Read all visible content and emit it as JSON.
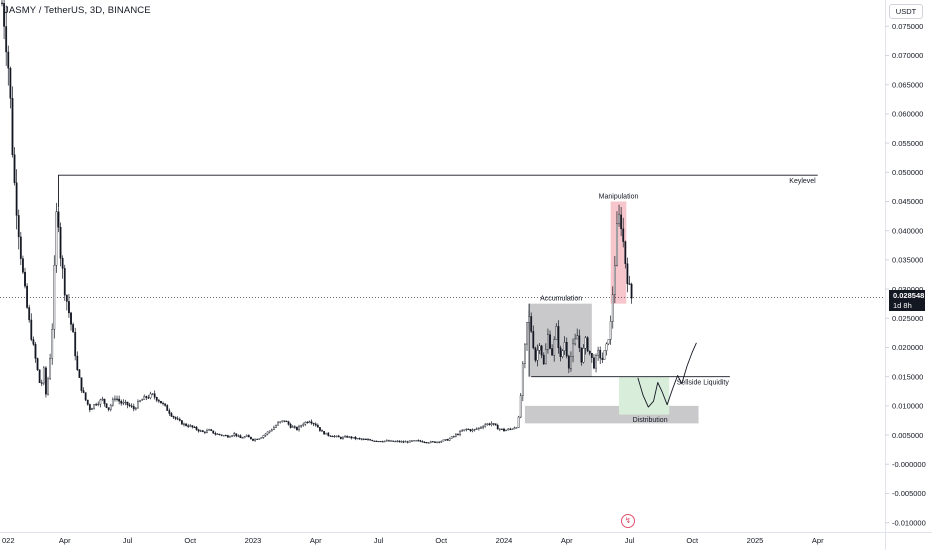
{
  "header": {
    "symbol": "JASMY / TetherUS, 3D, BINANCE"
  },
  "currency": "USDT",
  "current_price": {
    "value": "0.028548",
    "countdown": "1d 8h"
  },
  "icons": {
    "lightning": "lightning-icon"
  },
  "colors": {
    "candle": "#131722",
    "manipulation_box": "#f7c6cc",
    "accumulation_box": "#c9c9cb",
    "distribution_box": "#c9c9cb",
    "target_box": "#d8eedb",
    "price_line": "#131722"
  },
  "chart_data": {
    "type": "candlestick",
    "y_ticks": [
      "0.075000",
      "0.070000",
      "0.065000",
      "0.060000",
      "0.055000",
      "0.050000",
      "0.045000",
      "0.040000",
      "0.035000",
      "0.030000",
      "0.025000",
      "0.020000",
      "0.015000",
      "0.010000",
      "0.005000",
      "-0.000000",
      "-0.005000",
      "-0.010000"
    ],
    "y_tick_values": [
      0.075,
      0.07,
      0.065,
      0.06,
      0.055,
      0.05,
      0.045,
      0.04,
      0.035,
      0.03,
      0.025,
      0.02,
      0.015,
      0.01,
      0.005,
      0,
      -0.005,
      -0.01
    ],
    "ylim": [
      -0.0116,
      0.0795
    ],
    "x_ticks": [
      {
        "label": "022",
        "month": 0
      },
      {
        "label": "Apr",
        "month": 3
      },
      {
        "label": "Jul",
        "month": 6
      },
      {
        "label": "Oct",
        "month": 9
      },
      {
        "label": "2023",
        "month": 12
      },
      {
        "label": "Apr",
        "month": 15
      },
      {
        "label": "Jul",
        "month": 18
      },
      {
        "label": "Oct",
        "month": 21
      },
      {
        "label": "2024",
        "month": 24
      },
      {
        "label": "Apr",
        "month": 27
      },
      {
        "label": "Jul",
        "month": 30
      },
      {
        "label": "Oct",
        "month": 33
      },
      {
        "label": "2025",
        "month": 36
      },
      {
        "label": "Apr",
        "month": 39
      }
    ],
    "price_path": [
      [
        0.0,
        0.079
      ],
      [
        0.15,
        0.075
      ],
      [
        0.35,
        0.066
      ],
      [
        0.55,
        0.05
      ],
      [
        0.75,
        0.042
      ],
      [
        0.95,
        0.034
      ],
      [
        1.15,
        0.028
      ],
      [
        1.35,
        0.023
      ],
      [
        1.6,
        0.018
      ],
      [
        1.85,
        0.013
      ],
      [
        2.0,
        0.016
      ],
      [
        2.1,
        0.012
      ],
      [
        2.25,
        0.016
      ],
      [
        2.45,
        0.026
      ],
      [
        2.55,
        0.04
      ],
      [
        2.65,
        0.045
      ],
      [
        2.8,
        0.036
      ],
      [
        3.0,
        0.03
      ],
      [
        3.2,
        0.026
      ],
      [
        3.4,
        0.022
      ],
      [
        3.6,
        0.016
      ],
      [
        3.8,
        0.013
      ],
      [
        4.0,
        0.011
      ],
      [
        4.2,
        0.0095
      ],
      [
        4.5,
        0.0105
      ],
      [
        4.8,
        0.011
      ],
      [
        5.1,
        0.0095
      ],
      [
        5.4,
        0.0115
      ],
      [
        5.7,
        0.0105
      ],
      [
        6.0,
        0.0102
      ],
      [
        6.3,
        0.0095
      ],
      [
        6.6,
        0.0108
      ],
      [
        6.9,
        0.0115
      ],
      [
        7.2,
        0.0118
      ],
      [
        7.5,
        0.011
      ],
      [
        7.8,
        0.0098
      ],
      [
        8.1,
        0.0085
      ],
      [
        8.4,
        0.0075
      ],
      [
        8.7,
        0.0068
      ],
      [
        9.0,
        0.0065
      ],
      [
        9.3,
        0.006
      ],
      [
        9.6,
        0.0055
      ],
      [
        9.9,
        0.0058
      ],
      [
        10.2,
        0.0052
      ],
      [
        10.5,
        0.005
      ],
      [
        10.8,
        0.0048
      ],
      [
        11.1,
        0.0052
      ],
      [
        11.4,
        0.0045
      ],
      [
        11.7,
        0.0048
      ],
      [
        12.0,
        0.0042
      ],
      [
        12.3,
        0.0045
      ],
      [
        12.6,
        0.0052
      ],
      [
        12.9,
        0.006
      ],
      [
        13.2,
        0.007
      ],
      [
        13.5,
        0.0075
      ],
      [
        13.8,
        0.0065
      ],
      [
        14.1,
        0.006
      ],
      [
        14.4,
        0.007
      ],
      [
        14.7,
        0.0075
      ],
      [
        15.0,
        0.0068
      ],
      [
        15.3,
        0.0055
      ],
      [
        15.6,
        0.005
      ],
      [
        15.9,
        0.0048
      ],
      [
        16.2,
        0.0045
      ],
      [
        16.5,
        0.0047
      ],
      [
        16.8,
        0.0045
      ],
      [
        17.1,
        0.0043
      ],
      [
        17.4,
        0.0042
      ],
      [
        17.7,
        0.0041
      ],
      [
        18.0,
        0.004
      ],
      [
        18.3,
        0.004
      ],
      [
        18.6,
        0.0039
      ],
      [
        18.9,
        0.0039
      ],
      [
        19.2,
        0.0038
      ],
      [
        19.5,
        0.0039
      ],
      [
        19.8,
        0.004
      ],
      [
        20.1,
        0.0039
      ],
      [
        20.4,
        0.0038
      ],
      [
        20.7,
        0.0038
      ],
      [
        21.0,
        0.004
      ],
      [
        21.3,
        0.0042
      ],
      [
        21.6,
        0.0048
      ],
      [
        21.9,
        0.0055
      ],
      [
        22.2,
        0.006
      ],
      [
        22.5,
        0.0058
      ],
      [
        22.8,
        0.0062
      ],
      [
        23.1,
        0.0068
      ],
      [
        23.4,
        0.007
      ],
      [
        23.7,
        0.0062
      ],
      [
        24.0,
        0.0058
      ],
      [
        24.3,
        0.006
      ],
      [
        24.6,
        0.0065
      ],
      [
        24.75,
        0.0085
      ],
      [
        24.85,
        0.015
      ],
      [
        25.0,
        0.02
      ],
      [
        25.15,
        0.026
      ],
      [
        25.3,
        0.023
      ],
      [
        25.5,
        0.018
      ],
      [
        25.7,
        0.021
      ],
      [
        25.9,
        0.017
      ],
      [
        26.1,
        0.022
      ],
      [
        26.3,
        0.019
      ],
      [
        26.5,
        0.023
      ],
      [
        26.7,
        0.018
      ],
      [
        26.9,
        0.021
      ],
      [
        27.1,
        0.017
      ],
      [
        27.3,
        0.02
      ],
      [
        27.5,
        0.022
      ],
      [
        27.7,
        0.018
      ],
      [
        27.9,
        0.021
      ],
      [
        28.1,
        0.019
      ],
      [
        28.3,
        0.017
      ],
      [
        28.5,
        0.019
      ],
      [
        28.7,
        0.018
      ],
      [
        28.9,
        0.02
      ],
      [
        29.1,
        0.024
      ],
      [
        29.25,
        0.032
      ],
      [
        29.4,
        0.04
      ],
      [
        29.55,
        0.043
      ],
      [
        29.7,
        0.038
      ],
      [
        29.85,
        0.033
      ],
      [
        30.0,
        0.03
      ],
      [
        30.1,
        0.0285
      ]
    ],
    "keylevel": {
      "label": "Keylevel",
      "value": 0.0495,
      "x_start": 2.7,
      "x_end": 39.0
    },
    "zones": [
      {
        "label": "Manipulation",
        "x_start": 29.1,
        "x_end": 29.85,
        "y_low": 0.0275,
        "y_high": 0.045
      },
      {
        "label": "Accumulation",
        "x_start": 25.2,
        "x_end": 28.2,
        "y_low": 0.015,
        "y_high": 0.0275
      },
      {
        "label": "Distribution",
        "x_start": 25.0,
        "x_end": 33.3,
        "y_low": 0.007,
        "y_high": 0.01
      },
      {
        "label": "",
        "x_start": 29.5,
        "x_end": 31.9,
        "y_low": 0.0085,
        "y_high": 0.015
      }
    ],
    "sellside_liquidity": {
      "label": "Sellside Liquidity",
      "value": 0.015,
      "x_start": 25.3,
      "x_end": 34.8
    },
    "projection": [
      [
        30.4,
        0.0148
      ],
      [
        30.65,
        0.0118
      ],
      [
        30.9,
        0.0098
      ],
      [
        31.15,
        0.0108
      ],
      [
        31.35,
        0.014
      ],
      [
        31.55,
        0.0125
      ],
      [
        31.8,
        0.0102
      ],
      [
        32.05,
        0.0128
      ],
      [
        32.3,
        0.0152
      ],
      [
        32.5,
        0.0138
      ],
      [
        32.75,
        0.0168
      ],
      [
        33.0,
        0.0192
      ],
      [
        33.2,
        0.0208
      ]
    ],
    "current_price_value": 0.028548,
    "grid": false
  }
}
